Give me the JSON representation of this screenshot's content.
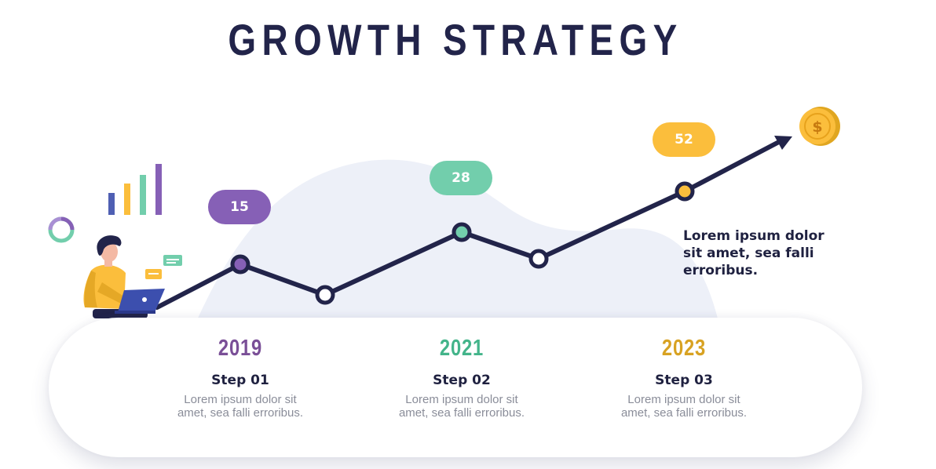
{
  "title": "GROWTH STRATEGY",
  "colors": {
    "navy": "#22244a",
    "purple": "#8660b6",
    "green": "#72ceac",
    "yellow": "#fbbe3c",
    "blob": "#edf0f8"
  },
  "milestones": [
    {
      "value": "15",
      "color": "#8660b6"
    },
    {
      "value": "28",
      "color": "#72ceac"
    },
    {
      "value": "52",
      "color": "#fbbe3c"
    }
  ],
  "steps": [
    {
      "year": "2019",
      "year_color": "#7a4f97",
      "label": "Step 01",
      "desc": "Lorem ipsum dolor sit amet, sea falli erroribus."
    },
    {
      "year": "2021",
      "year_color": "#43b48a",
      "label": "Step 02",
      "desc": "Lorem ipsum dolor sit amet, sea falli erroribus."
    },
    {
      "year": "2023",
      "year_color": "#d8a222",
      "label": "Step 03",
      "desc": "Lorem ipsum dolor sit amet, sea falli erroribus."
    }
  ],
  "side_note": "Lorem ipsum dolor sit amet, sea falli erroribus.",
  "icons": {
    "coin": "dollar-coin-icon",
    "bars": "bar-chart-icon",
    "ring": "donut-icon",
    "person": "person-with-laptop-illustration",
    "messages": "chat-bubble-icon"
  },
  "coin_symbol": "$"
}
